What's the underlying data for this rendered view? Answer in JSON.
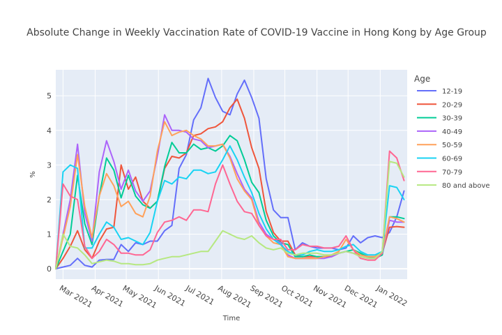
{
  "chart_data": {
    "type": "line",
    "title": "Absolute Change in Weekly Vaccination Rate of COVID-19 Vaccine in Hong Kong by Age Group",
    "xlabel": "Time",
    "ylabel": "%",
    "ylim": [
      -0.3,
      5.75
    ],
    "yticks": [
      0,
      1,
      2,
      3,
      4,
      5
    ],
    "xlim": [
      "2021-02-22",
      "2022-01-27"
    ],
    "xticks": [
      {
        "date": "2021-03-01",
        "label": "Mar 2021"
      },
      {
        "date": "2021-04-01",
        "label": "Apr 2021"
      },
      {
        "date": "2021-05-01",
        "label": "May 2021"
      },
      {
        "date": "2021-06-01",
        "label": "Jun 2021"
      },
      {
        "date": "2021-07-01",
        "label": "Jul 2021"
      },
      {
        "date": "2021-08-01",
        "label": "Aug 2021"
      },
      {
        "date": "2021-09-01",
        "label": "Sep 2021"
      },
      {
        "date": "2021-10-01",
        "label": "Oct 2021"
      },
      {
        "date": "2021-11-01",
        "label": "Nov 2021"
      },
      {
        "date": "2021-12-01",
        "label": "Dec 2021"
      },
      {
        "date": "2022-01-01",
        "label": "Jan 2022"
      }
    ],
    "grid": true,
    "legend_title": "Age",
    "legend_position": "right",
    "x": [
      "2021-02-22",
      "2021-03-01",
      "2021-03-08",
      "2021-03-15",
      "2021-03-22",
      "2021-03-29",
      "2021-04-05",
      "2021-04-12",
      "2021-04-19",
      "2021-04-26",
      "2021-05-03",
      "2021-05-10",
      "2021-05-17",
      "2021-05-24",
      "2021-05-31",
      "2021-06-07",
      "2021-06-14",
      "2021-06-21",
      "2021-06-28",
      "2021-07-05",
      "2021-07-12",
      "2021-07-19",
      "2021-07-26",
      "2021-08-02",
      "2021-08-09",
      "2021-08-16",
      "2021-08-23",
      "2021-08-30",
      "2021-09-06",
      "2021-09-13",
      "2021-09-20",
      "2021-09-27",
      "2021-10-04",
      "2021-10-11",
      "2021-10-18",
      "2021-10-25",
      "2021-11-01",
      "2021-11-08",
      "2021-11-15",
      "2021-11-22",
      "2021-11-29",
      "2021-12-06",
      "2021-12-13",
      "2021-12-20",
      "2021-12-27",
      "2022-01-03",
      "2022-01-10",
      "2022-01-17",
      "2022-01-24"
    ],
    "series": [
      {
        "name": "12-19",
        "color": "#636efa",
        "values": [
          0,
          0.05,
          0.1,
          0.3,
          0.1,
          0.05,
          0.25,
          0.27,
          0.27,
          0.7,
          0.5,
          0.75,
          0.7,
          0.8,
          0.8,
          1.1,
          1.25,
          2.9,
          3.3,
          4.3,
          4.65,
          5.5,
          4.95,
          4.55,
          4.45,
          5.05,
          5.45,
          4.95,
          4.35,
          2.6,
          1.7,
          1.48,
          1.48,
          0.55,
          0.75,
          0.65,
          0.6,
          0.6,
          0.6,
          0.55,
          0.6,
          0.95,
          0.75,
          0.9,
          0.95,
          0.9,
          1.05,
          1.5,
          2.25
        ]
      },
      {
        "name": "20-29",
        "color": "#EF553B",
        "values": [
          0,
          0.3,
          0.65,
          1.1,
          0.55,
          0.3,
          0.8,
          1.15,
          1.2,
          3.0,
          2.3,
          2.65,
          1.95,
          1.75,
          1.95,
          2.9,
          3.25,
          3.2,
          3.35,
          3.85,
          3.9,
          4.05,
          4.1,
          4.25,
          4.65,
          4.9,
          4.35,
          3.5,
          2.9,
          1.65,
          1.05,
          0.8,
          0.8,
          0.4,
          0.35,
          0.35,
          0.35,
          0.35,
          0.35,
          0.45,
          0.5,
          0.45,
          0.4,
          0.35,
          0.35,
          0.45,
          1.2,
          1.22,
          1.2
        ]
      },
      {
        "name": "30-39",
        "color": "#00cc96",
        "values": [
          0,
          0.5,
          1.0,
          2.7,
          1.3,
          0.7,
          2.1,
          3.2,
          2.85,
          2.05,
          2.7,
          2.1,
          1.85,
          1.75,
          1.95,
          2.95,
          3.65,
          3.35,
          3.35,
          3.6,
          3.45,
          3.5,
          3.4,
          3.55,
          3.85,
          3.7,
          3.15,
          2.5,
          2.2,
          1.4,
          0.95,
          0.75,
          0.7,
          0.35,
          0.35,
          0.4,
          0.35,
          0.35,
          0.4,
          0.45,
          0.5,
          0.55,
          0.45,
          0.35,
          0.3,
          0.4,
          1.5,
          1.5,
          1.45
        ]
      },
      {
        "name": "40-49",
        "color": "#ab63fa",
        "values": [
          0,
          1.0,
          2.0,
          3.6,
          1.6,
          0.8,
          2.8,
          3.7,
          3.1,
          2.3,
          2.85,
          2.25,
          1.95,
          2.25,
          3.25,
          4.45,
          4.0,
          4.0,
          3.95,
          3.75,
          3.7,
          3.5,
          3.55,
          3.6,
          3.25,
          2.75,
          2.3,
          2.05,
          1.35,
          1.0,
          0.85,
          0.75,
          0.4,
          0.3,
          0.3,
          0.3,
          0.3,
          0.3,
          0.35,
          0.45,
          0.5,
          0.45,
          0.35,
          0.3,
          0.3,
          0.45,
          1.4,
          1.35,
          1.35
        ]
      },
      {
        "name": "50-59",
        "color": "#FFA15A",
        "values": [
          0,
          0.9,
          1.8,
          3.3,
          1.8,
          0.9,
          2.1,
          2.75,
          2.4,
          1.8,
          1.95,
          1.6,
          1.5,
          2.1,
          3.4,
          4.25,
          3.85,
          3.95,
          4.0,
          3.85,
          3.75,
          3.55,
          3.55,
          3.6,
          3.2,
          2.6,
          2.25,
          2.0,
          1.25,
          0.95,
          0.75,
          0.7,
          0.35,
          0.3,
          0.3,
          0.3,
          0.3,
          0.35,
          0.4,
          0.5,
          0.85,
          0.55,
          0.4,
          0.35,
          0.35,
          0.5,
          1.5,
          1.45,
          1.35
        ]
      },
      {
        "name": "60-69",
        "color": "#19d3f3",
        "values": [
          0,
          2.8,
          3.0,
          2.9,
          0.6,
          0.6,
          1.0,
          1.35,
          1.2,
          0.85,
          0.9,
          0.8,
          0.7,
          1.05,
          1.95,
          2.55,
          2.45,
          2.65,
          2.6,
          2.85,
          2.85,
          2.75,
          2.8,
          3.15,
          3.55,
          3.15,
          2.65,
          2.2,
          1.6,
          1.15,
          0.85,
          0.7,
          0.5,
          0.4,
          0.4,
          0.5,
          0.55,
          0.5,
          0.5,
          0.55,
          0.65,
          0.7,
          0.5,
          0.4,
          0.4,
          0.5,
          2.4,
          2.35,
          2.0
        ]
      },
      {
        "name": "70-79",
        "color": "#FF6692",
        "values": [
          0,
          2.45,
          2.1,
          2.0,
          0.65,
          0.3,
          0.5,
          0.85,
          0.7,
          0.45,
          0.45,
          0.4,
          0.4,
          0.55,
          1.05,
          1.35,
          1.4,
          1.5,
          1.4,
          1.7,
          1.7,
          1.65,
          2.45,
          3.0,
          2.45,
          1.95,
          1.65,
          1.6,
          1.25,
          0.95,
          0.85,
          0.85,
          0.55,
          0.55,
          0.7,
          0.65,
          0.65,
          0.6,
          0.6,
          0.65,
          0.95,
          0.55,
          0.3,
          0.25,
          0.25,
          0.45,
          3.4,
          3.2,
          2.55
        ]
      },
      {
        "name": "80 and above",
        "color": "#B6E880",
        "values": [
          0,
          1.0,
          0.65,
          0.6,
          0.4,
          0.15,
          0.2,
          0.25,
          0.22,
          0.15,
          0.15,
          0.12,
          0.12,
          0.15,
          0.25,
          0.3,
          0.35,
          0.35,
          0.4,
          0.45,
          0.5,
          0.5,
          0.8,
          1.1,
          1.0,
          0.9,
          0.85,
          0.95,
          0.75,
          0.6,
          0.55,
          0.6,
          0.45,
          0.4,
          0.45,
          0.45,
          0.45,
          0.4,
          0.4,
          0.45,
          0.5,
          0.45,
          0.35,
          0.3,
          0.3,
          0.5,
          3.1,
          3.05,
          2.65
        ]
      }
    ]
  }
}
